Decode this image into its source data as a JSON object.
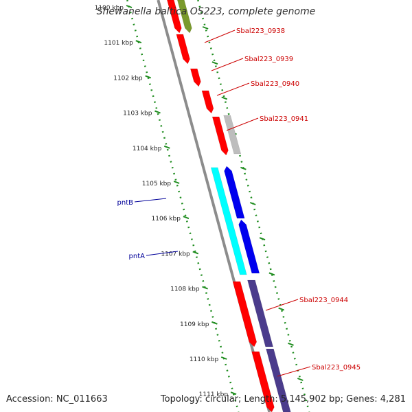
{
  "title": "Shewanella baltica OS223, complete genome",
  "accession": "Accession: NC_011663",
  "summary": "Topology: circular; Length: 5,145,902 bp; Genes: 4,281",
  "colors": {
    "backbone": "#8c8c8c",
    "ruler": "#1e8c1e",
    "gene_red": "#ff0000",
    "gene_gray": "#bdbdbd",
    "gene_olive": "#7a9a2c",
    "gene_cyan": "#00ffff",
    "gene_blue": "#0000ee",
    "gene_purple": "#4b3c8c",
    "label_red": "#cc0000",
    "label_blue": "#000099"
  },
  "ruler_labels": [
    "1100 kbp",
    "1101 kbp",
    "1102 kbp",
    "1103 kbp",
    "1104 kbp",
    "1105 kbp",
    "1106 kbp",
    "1107 kbp",
    "1108 kbp",
    "1109 kbp",
    "1110 kbp",
    "1111 kbp"
  ],
  "gene_labels": [
    {
      "text": "Sbal223_0938",
      "color": "label_red"
    },
    {
      "text": "Sbal223_0939",
      "color": "label_red"
    },
    {
      "text": "Sbal223_0940",
      "color": "label_red"
    },
    {
      "text": "Sbal223_0941",
      "color": "label_red"
    },
    {
      "text": "Sbal223_0944",
      "color": "label_red"
    },
    {
      "text": "Sbal223_0945",
      "color": "label_red"
    },
    {
      "text": "pntB",
      "color": "label_blue"
    },
    {
      "text": "pntA",
      "color": "label_blue"
    }
  ]
}
